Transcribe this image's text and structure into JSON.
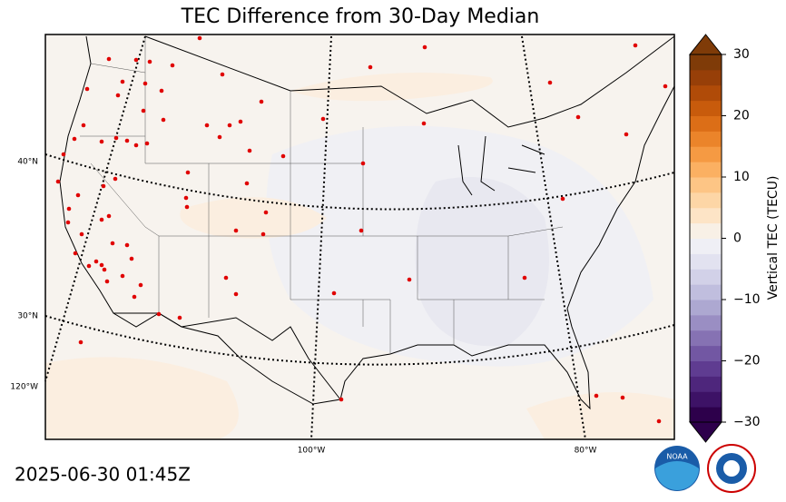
{
  "title": "TEC Difference from 30-Day Median",
  "timestamp": "2025-06-30 01:45Z",
  "map_labels": {
    "lat": [
      "40°N",
      "30°N"
    ],
    "lon": [
      "120°W",
      "100°W",
      "80°W"
    ]
  },
  "colorbar": {
    "label": "Vertical TEC (TECU)",
    "lim": [
      -30,
      30
    ],
    "ticks": [
      {
        "value": -30,
        "label": "−30"
      },
      {
        "value": -20,
        "label": "−20"
      },
      {
        "value": -10,
        "label": "−10"
      },
      0,
      10,
      20,
      30
    ],
    "colors": [
      "#2d004b",
      "#3d1266",
      "#4e267c",
      "#5f3c91",
      "#7257a3",
      "#8672b3",
      "#9a8ec3",
      "#ada8d1",
      "#c0bede",
      "#d2d1e8",
      "#e2e2f0",
      "#efeff5",
      "#f8f0e6",
      "#fde4c6",
      "#fdd6a6",
      "#fdc585",
      "#fbb062",
      "#f59a43",
      "#eb842a",
      "#dc6e17",
      "#c85b0c",
      "#b04b08",
      "#973f08",
      "#7f3b08"
    ]
  }
}
